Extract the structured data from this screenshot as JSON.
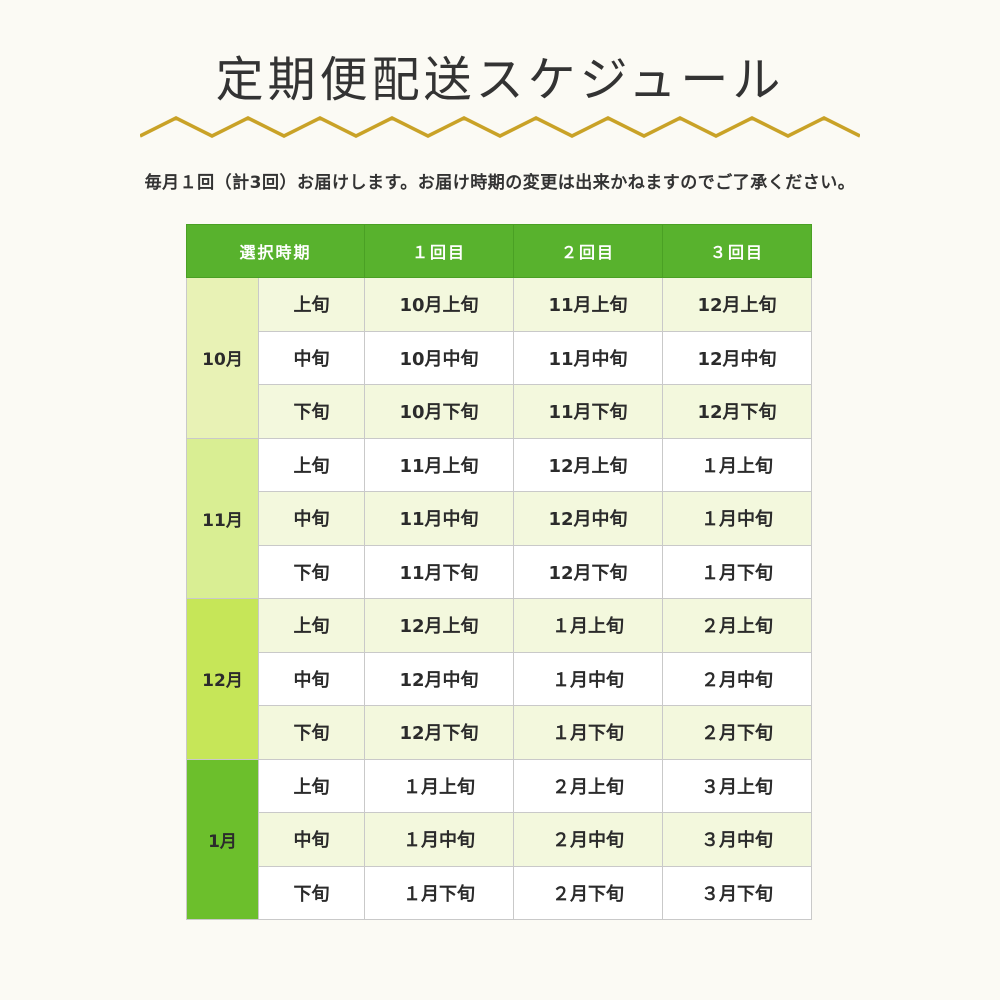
{
  "title": "定期便配送スケジュール",
  "subtitle": "毎月１回（計3回）お届けします。お届け時期の変更は出来かねますのでご了承ください。",
  "colors": {
    "header_bg": "#58b22d",
    "zigzag": "#c9a227",
    "row_shade": "#f3f8dd"
  },
  "table": {
    "headers": [
      "選択時期",
      "１回目",
      "２回目",
      "３回目"
    ],
    "groups": [
      {
        "month": "10月",
        "rows": [
          {
            "period": "上旬",
            "first": "10月上旬",
            "second": "11月上旬",
            "third": "12月上旬"
          },
          {
            "period": "中旬",
            "first": "10月中旬",
            "second": "11月中旬",
            "third": "12月中旬"
          },
          {
            "period": "下旬",
            "first": "10月下旬",
            "second": "11月下旬",
            "third": "12月下旬"
          }
        ]
      },
      {
        "month": "11月",
        "rows": [
          {
            "period": "上旬",
            "first": "11月上旬",
            "second": "12月上旬",
            "third": "１月上旬"
          },
          {
            "period": "中旬",
            "first": "11月中旬",
            "second": "12月中旬",
            "third": "１月中旬"
          },
          {
            "period": "下旬",
            "first": "11月下旬",
            "second": "12月下旬",
            "third": "１月下旬"
          }
        ]
      },
      {
        "month": "12月",
        "rows": [
          {
            "period": "上旬",
            "first": "12月上旬",
            "second": "１月上旬",
            "third": "２月上旬"
          },
          {
            "period": "中旬",
            "first": "12月中旬",
            "second": "１月中旬",
            "third": "２月中旬"
          },
          {
            "period": "下旬",
            "first": "12月下旬",
            "second": "１月下旬",
            "third": "２月下旬"
          }
        ]
      },
      {
        "month": "1月",
        "rows": [
          {
            "period": "上旬",
            "first": "１月上旬",
            "second": "２月上旬",
            "third": "３月上旬"
          },
          {
            "period": "中旬",
            "first": "１月中旬",
            "second": "２月中旬",
            "third": "３月中旬"
          },
          {
            "period": "下旬",
            "first": "１月下旬",
            "second": "２月下旬",
            "third": "３月下旬"
          }
        ]
      }
    ]
  }
}
